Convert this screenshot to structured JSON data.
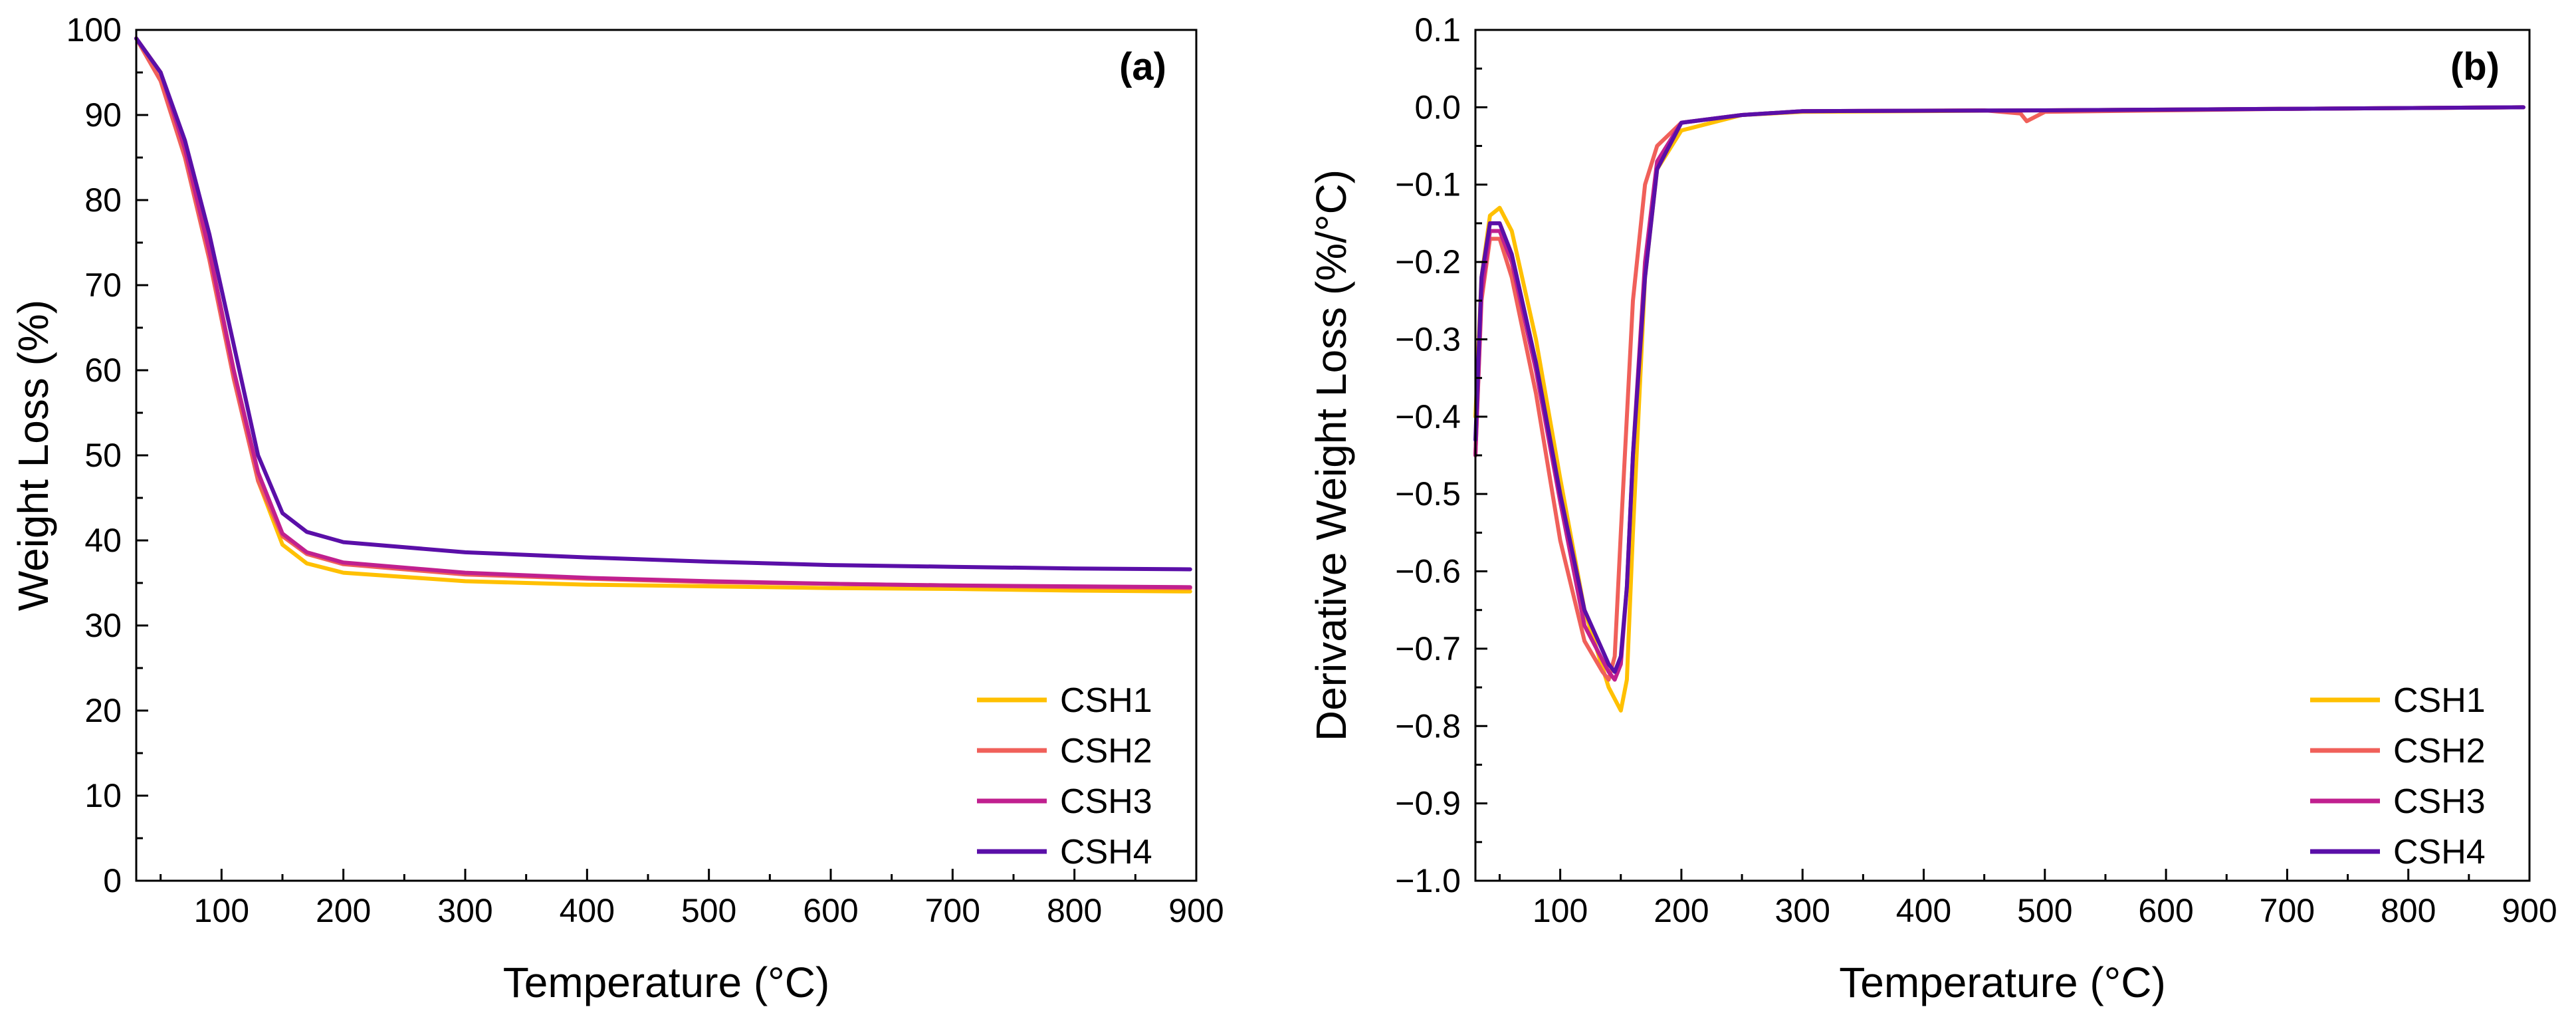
{
  "chart_data": [
    {
      "type": "line",
      "panel_label": "(a)",
      "xlabel": "Temperature (°C)",
      "ylabel": "Weight Loss (%)",
      "xlim": [
        30,
        900
      ],
      "ylim": [
        0,
        100
      ],
      "xticks": [
        100,
        200,
        300,
        400,
        500,
        600,
        700,
        800,
        900
      ],
      "yticks": [
        0,
        10,
        20,
        30,
        40,
        50,
        60,
        70,
        80,
        90,
        100
      ],
      "legend_position": "bottom-right",
      "grid": false,
      "series": [
        {
          "name": "CSH1",
          "color": "#FFC000",
          "x": [
            30,
            50,
            70,
            90,
            110,
            130,
            150,
            170,
            200,
            300,
            400,
            500,
            600,
            700,
            800,
            895
          ],
          "y": [
            99,
            95,
            86,
            74,
            60,
            47,
            39.5,
            37.3,
            36.2,
            35.2,
            34.8,
            34.6,
            34.4,
            34.3,
            34.1,
            34.0
          ]
        },
        {
          "name": "CSH2",
          "color": "#F0605A",
          "x": [
            30,
            50,
            70,
            90,
            110,
            130,
            150,
            170,
            200,
            300,
            400,
            500,
            600,
            700,
            800,
            895
          ],
          "y": [
            99,
            94,
            85,
            73,
            59,
            47,
            40.5,
            38.4,
            37.2,
            36.0,
            35.5,
            35.1,
            34.9,
            34.7,
            34.5,
            34.4
          ]
        },
        {
          "name": "CSH3",
          "color": "#C0208F",
          "x": [
            30,
            50,
            70,
            90,
            110,
            130,
            150,
            170,
            200,
            300,
            400,
            500,
            600,
            700,
            800,
            895
          ],
          "y": [
            99,
            95,
            86,
            74,
            60,
            48,
            40.8,
            38.6,
            37.4,
            36.2,
            35.6,
            35.2,
            34.9,
            34.7,
            34.6,
            34.5
          ]
        },
        {
          "name": "CSH4",
          "color": "#5A0FA8",
          "x": [
            30,
            50,
            70,
            90,
            110,
            130,
            150,
            170,
            200,
            300,
            400,
            500,
            600,
            700,
            800,
            895
          ],
          "y": [
            99,
            95,
            87,
            76,
            63,
            50,
            43.2,
            41.0,
            39.8,
            38.6,
            38.0,
            37.5,
            37.1,
            36.9,
            36.7,
            36.6
          ]
        }
      ]
    },
    {
      "type": "line",
      "panel_label": "(b)",
      "xlabel": "Temperature (°C)",
      "ylabel": "Derivative Weight Loss (%/°C)",
      "xlim": [
        30,
        900
      ],
      "ylim": [
        -1.0,
        0.1
      ],
      "xticks": [
        100,
        200,
        300,
        400,
        500,
        600,
        700,
        800,
        900
      ],
      "yticks": [
        -1.0,
        -0.9,
        -0.8,
        -0.7,
        -0.6,
        -0.5,
        -0.4,
        -0.3,
        -0.2,
        -0.1,
        0.0,
        0.1
      ],
      "legend_position": "bottom-right",
      "grid": false,
      "series": [
        {
          "name": "CSH1",
          "color": "#FFC000",
          "x": [
            30,
            35,
            42,
            50,
            60,
            80,
            100,
            120,
            140,
            150,
            155,
            160,
            170,
            180,
            200,
            250,
            300,
            500,
            700,
            895
          ],
          "y": [
            -0.4,
            -0.22,
            -0.14,
            -0.13,
            -0.16,
            -0.3,
            -0.48,
            -0.65,
            -0.75,
            -0.78,
            -0.74,
            -0.55,
            -0.22,
            -0.08,
            -0.03,
            -0.01,
            -0.006,
            -0.004,
            -0.002,
            0.0
          ]
        },
        {
          "name": "CSH2",
          "color": "#F0605A",
          "x": [
            30,
            35,
            42,
            50,
            60,
            80,
            100,
            120,
            135,
            140,
            145,
            150,
            160,
            170,
            180,
            200,
            250,
            300,
            450,
            480,
            485,
            500,
            700,
            895
          ],
          "y": [
            -0.45,
            -0.25,
            -0.17,
            -0.17,
            -0.22,
            -0.37,
            -0.56,
            -0.69,
            -0.73,
            -0.74,
            -0.71,
            -0.55,
            -0.25,
            -0.1,
            -0.05,
            -0.02,
            -0.01,
            -0.005,
            -0.004,
            -0.008,
            -0.018,
            -0.006,
            -0.002,
            0.0
          ]
        },
        {
          "name": "CSH3",
          "color": "#C0208F",
          "x": [
            30,
            35,
            42,
            50,
            60,
            80,
            100,
            120,
            140,
            145,
            150,
            155,
            160,
            170,
            180,
            200,
            250,
            300,
            500,
            700,
            895
          ],
          "y": [
            -0.45,
            -0.24,
            -0.16,
            -0.16,
            -0.2,
            -0.34,
            -0.51,
            -0.67,
            -0.73,
            -0.74,
            -0.72,
            -0.62,
            -0.45,
            -0.2,
            -0.07,
            -0.02,
            -0.01,
            -0.005,
            -0.004,
            -0.002,
            0.0
          ]
        },
        {
          "name": "CSH4",
          "color": "#5A0FA8",
          "x": [
            30,
            35,
            42,
            50,
            60,
            80,
            100,
            120,
            140,
            145,
            150,
            155,
            160,
            170,
            180,
            200,
            250,
            300,
            500,
            700,
            895
          ],
          "y": [
            -0.43,
            -0.22,
            -0.15,
            -0.15,
            -0.19,
            -0.33,
            -0.5,
            -0.65,
            -0.72,
            -0.73,
            -0.71,
            -0.62,
            -0.45,
            -0.22,
            -0.08,
            -0.02,
            -0.01,
            -0.005,
            -0.004,
            -0.002,
            0.0
          ]
        }
      ]
    }
  ]
}
